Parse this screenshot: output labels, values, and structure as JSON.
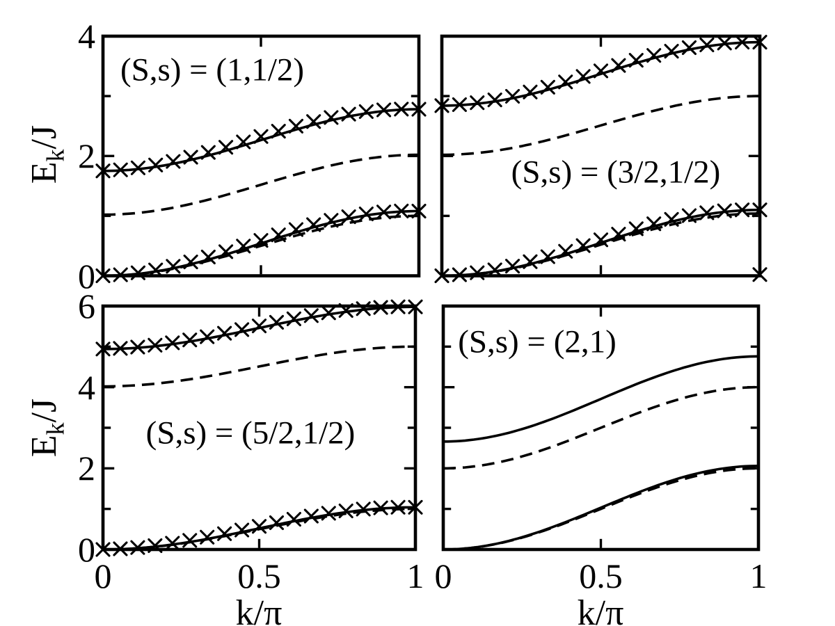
{
  "figure": {
    "background": "#ffffff",
    "ink": "#000000"
  },
  "chart_data": {
    "type": "line",
    "layout": {
      "rows": 2,
      "cols": 2,
      "grid": false,
      "legend": "none"
    },
    "xlabel": "k/π",
    "ylabel_main": "E",
    "ylabel_sub": "k",
    "ylabel_rest": "/J",
    "x_tick_labels": [
      "0",
      "0.5",
      "1"
    ],
    "x_tick_values": [
      0,
      0.5,
      1
    ],
    "panels": [
      {
        "title": "(S,s) = (1,1/2)",
        "xlim": [
          0,
          1
        ],
        "ylim": [
          0,
          4
        ],
        "ytick_label_values": [
          0,
          2,
          4
        ],
        "ytick_labels": [
          "0",
          "2",
          "4"
        ],
        "show_ytick_labels": true,
        "show_xtick_labels": false,
        "k_over_pi": [
          0,
          0.1,
          0.2,
          0.3,
          0.4,
          0.5,
          0.6,
          0.7,
          0.8,
          0.9,
          1.0
        ],
        "series": [
          {
            "name": "optical-branch-dashed",
            "style": "dashed",
            "E_k0": 1.02,
            "E_kpi": 2.02,
            "E_over_J": [
              1.02,
              1.04,
              1.12,
              1.23,
              1.37,
              1.52,
              1.67,
              1.81,
              1.92,
              2.0,
              2.02
            ]
          },
          {
            "name": "acoustic-branch-dashed",
            "style": "dashed",
            "E_k0": 0.0,
            "E_kpi": 1.0,
            "E_over_J": [
              0,
              0.02,
              0.1,
              0.21,
              0.35,
              0.5,
              0.65,
              0.79,
              0.9,
              0.98,
              1.0
            ]
          },
          {
            "name": "optical-branch-solid",
            "style": "solid",
            "E_k0": 1.75,
            "E_kpi": 2.78,
            "E_over_J": [
              1.75,
              1.78,
              1.85,
              1.96,
              2.11,
              2.27,
              2.42,
              2.57,
              2.68,
              2.75,
              2.78
            ]
          },
          {
            "name": "acoustic-branch-solid",
            "style": "solid",
            "E_k0": 0.0,
            "E_kpi": 1.08,
            "E_over_J": [
              0,
              0.03,
              0.1,
              0.22,
              0.37,
              0.54,
              0.71,
              0.86,
              0.98,
              1.05,
              1.08
            ]
          }
        ],
        "markers": [
          {
            "name": "optical-x-markers",
            "marker": "x",
            "count": 19,
            "E_k0": 1.75,
            "E_kpi": 2.78,
            "offset_amp": 0.06
          },
          {
            "name": "acoustic-x-markers",
            "marker": "x",
            "count": 19,
            "E_k0": 0.0,
            "E_kpi": 1.08,
            "offset_amp": 0.05
          }
        ],
        "extra_marker_points": []
      },
      {
        "title": "(S,s) = (3/2,1/2)",
        "xlim": [
          0,
          1
        ],
        "ylim": [
          0,
          4
        ],
        "ytick_label_values": [
          0,
          2,
          4
        ],
        "ytick_labels": [
          "0",
          "2",
          "4"
        ],
        "show_ytick_labels": false,
        "show_xtick_labels": false,
        "k_over_pi": [
          0,
          0.1,
          0.2,
          0.3,
          0.4,
          0.5,
          0.6,
          0.7,
          0.8,
          0.9,
          1.0
        ],
        "series": [
          {
            "name": "optical-branch-dashed",
            "style": "dashed",
            "E_k0": 2.02,
            "E_kpi": 3.0,
            "E_over_J": [
              2.02,
              2.04,
              2.11,
              2.22,
              2.36,
              2.51,
              2.66,
              2.8,
              2.91,
              2.98,
              3.0
            ]
          },
          {
            "name": "acoustic-branch-dashed",
            "style": "dashed",
            "E_k0": 0.0,
            "E_kpi": 1.04,
            "E_over_J": [
              0,
              0.03,
              0.1,
              0.21,
              0.36,
              0.52,
              0.68,
              0.83,
              0.94,
              1.01,
              1.04
            ]
          },
          {
            "name": "optical-branch-solid",
            "style": "solid",
            "E_k0": 2.84,
            "E_kpi": 3.9,
            "E_over_J": [
              2.84,
              2.87,
              2.94,
              3.06,
              3.21,
              3.37,
              3.53,
              3.68,
              3.8,
              3.87,
              3.9
            ]
          },
          {
            "name": "acoustic-branch-solid",
            "style": "solid",
            "E_k0": 0.0,
            "E_kpi": 1.1,
            "E_over_J": [
              0,
              0.03,
              0.11,
              0.23,
              0.38,
              0.55,
              0.72,
              0.87,
              0.99,
              1.07,
              1.1
            ]
          }
        ],
        "markers": [
          {
            "name": "optical-x-markers",
            "marker": "x",
            "count": 19,
            "E_k0": 2.84,
            "E_kpi": 3.9,
            "offset_amp": 0.05
          },
          {
            "name": "acoustic-x-markers",
            "marker": "x",
            "count": 19,
            "E_k0": 0.0,
            "E_kpi": 1.1,
            "offset_amp": 0.05
          }
        ],
        "extra_marker_points": [
          [
            1.0,
            0.02
          ]
        ]
      },
      {
        "title": "(S,s) = (5/2,1/2)",
        "xlim": [
          0,
          1
        ],
        "ylim": [
          0,
          6
        ],
        "ytick_label_values": [
          0,
          2,
          4,
          6
        ],
        "ytick_labels": [
          "0",
          "2",
          "4",
          "6"
        ],
        "show_ytick_labels": true,
        "show_xtick_labels": true,
        "k_over_pi": [
          0,
          0.1,
          0.2,
          0.3,
          0.4,
          0.5,
          0.6,
          0.7,
          0.8,
          0.9,
          1.0
        ],
        "series": [
          {
            "name": "optical-branch-dashed",
            "style": "dashed",
            "E_k0": 4.02,
            "E_kpi": 5.0,
            "E_over_J": [
              4.02,
              4.04,
              4.11,
              4.22,
              4.36,
              4.51,
              4.66,
              4.8,
              4.91,
              4.98,
              5.0
            ]
          },
          {
            "name": "acoustic-branch-dashed",
            "style": "dashed",
            "E_k0": 0.0,
            "E_kpi": 1.0,
            "E_over_J": [
              0,
              0.02,
              0.1,
              0.21,
              0.35,
              0.5,
              0.65,
              0.79,
              0.9,
              0.98,
              1.0
            ]
          },
          {
            "name": "optical-branch-solid",
            "style": "solid",
            "E_k0": 4.94,
            "E_kpi": 5.98,
            "E_over_J": [
              4.94,
              4.97,
              5.04,
              5.15,
              5.3,
              5.46,
              5.62,
              5.77,
              5.88,
              5.95,
              5.98
            ]
          },
          {
            "name": "acoustic-branch-solid",
            "style": "solid",
            "E_k0": 0.0,
            "E_kpi": 1.04,
            "E_over_J": [
              0,
              0.03,
              0.1,
              0.21,
              0.36,
              0.52,
              0.68,
              0.83,
              0.94,
              1.01,
              1.04
            ]
          }
        ],
        "markers": [
          {
            "name": "optical-x-markers",
            "marker": "x",
            "count": 19,
            "E_k0": 4.94,
            "E_kpi": 5.98,
            "offset_amp": 0.05
          },
          {
            "name": "acoustic-x-markers",
            "marker": "x",
            "count": 19,
            "E_k0": 0.0,
            "E_kpi": 1.04,
            "offset_amp": 0.05
          }
        ],
        "extra_marker_points": []
      },
      {
        "title": "(S,s) = (2,1)",
        "xlim": [
          0,
          1
        ],
        "ylim": [
          0,
          6
        ],
        "ytick_label_values": [
          0,
          2,
          4,
          6
        ],
        "ytick_labels": [
          "0",
          "2",
          "4",
          "6"
        ],
        "show_ytick_labels": false,
        "show_xtick_labels": true,
        "k_over_pi": [
          0,
          0.1,
          0.2,
          0.3,
          0.4,
          0.5,
          0.6,
          0.7,
          0.8,
          0.9,
          1.0
        ],
        "series": [
          {
            "name": "optical-branch-dashed",
            "style": "dashed",
            "E_k0": 2.0,
            "E_kpi": 4.0,
            "E_over_J": [
              2.0,
              2.05,
              2.19,
              2.41,
              2.69,
              3.0,
              3.31,
              3.59,
              3.81,
              3.95,
              4.0
            ]
          },
          {
            "name": "acoustic-branch-dashed",
            "style": "dashed",
            "E_k0": 0.0,
            "E_kpi": 2.0,
            "E_over_J": [
              0,
              0.05,
              0.19,
              0.41,
              0.69,
              1.0,
              1.31,
              1.59,
              1.81,
              1.95,
              2.0
            ]
          },
          {
            "name": "optical-branch-solid",
            "style": "solid",
            "E_k0": 2.66,
            "E_kpi": 4.76,
            "E_over_J": [
              2.66,
              2.71,
              2.86,
              3.09,
              3.39,
              3.71,
              4.03,
              4.33,
              4.56,
              4.71,
              4.76
            ]
          },
          {
            "name": "acoustic-branch-solid",
            "style": "solid",
            "E_k0": 0.0,
            "E_kpi": 2.06,
            "E_over_J": [
              0,
              0.05,
              0.2,
              0.42,
              0.71,
              1.03,
              1.35,
              1.64,
              1.86,
              2.01,
              2.06
            ]
          }
        ],
        "markers": [],
        "extra_marker_points": []
      }
    ]
  }
}
